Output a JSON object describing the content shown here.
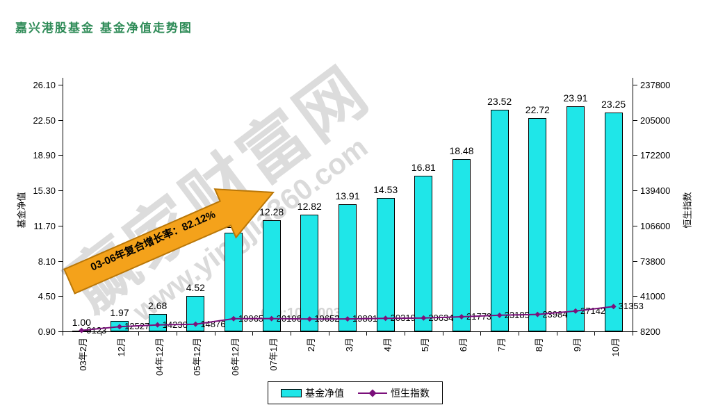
{
  "title": "嘉兴港股基金  基金净值走势图",
  "watermark": {
    "brand": "赢家财富网",
    "url": "www.yingjia360.com",
    "qq": "QQ:100300360"
  },
  "annotation": {
    "arrow_text": "03-06年复合增长率：82.12%"
  },
  "legend": {
    "items": [
      {
        "label": "基金净值",
        "type": "bar"
      },
      {
        "label": "恒生指数",
        "type": "line"
      }
    ]
  },
  "colors": {
    "title": "#2e8b57",
    "bar_fill": "#1fe6e8",
    "line": "#7b107b",
    "arrow_fill": "#f4a21b",
    "arrow_border": "#b97708",
    "axis": "#000000"
  },
  "chart_data": {
    "type": "bar+line",
    "title": "嘉兴港股基金 基金净值走势图",
    "categories": [
      "03年2月",
      "12月",
      "04年12月",
      "05年12月",
      "06年12月",
      "07年1月",
      "2月",
      "3月",
      "4月",
      "5月",
      "6月",
      "7月",
      "8月",
      "9月",
      "10月"
    ],
    "series": [
      {
        "name": "基金净值",
        "type": "bar",
        "axis": "left",
        "values": [
          1.0,
          1.97,
          2.68,
          4.52,
          11.0,
          12.28,
          12.82,
          13.91,
          14.53,
          16.81,
          18.48,
          23.52,
          22.72,
          23.91,
          23.25
        ],
        "labels": [
          "1.00",
          "1.97",
          "2.68",
          "4.52",
          "11.00",
          "12.28",
          "12.82",
          "13.91",
          "14.53",
          "16.81",
          "18.48",
          "23.52",
          "22.72",
          "23.91",
          "23.25"
        ]
      },
      {
        "name": "恒生指数",
        "type": "line",
        "axis": "right",
        "values": [
          9123,
          12527,
          14230,
          14876,
          19965,
          20106,
          19652,
          19801,
          20319,
          20634,
          21773,
          23185,
          23984,
          27142,
          31353
        ],
        "labels": [
          "9123",
          "12527",
          "14230",
          "14876",
          "19965",
          "20106",
          "19652",
          "19801",
          "20319",
          "20634",
          "21773",
          "23185",
          "23984",
          "27142",
          "31353"
        ]
      }
    ],
    "left_axis": {
      "label": "基金净值",
      "min": 0.9,
      "max": 26.1,
      "tick_labels": [
        "26.10",
        "22.50",
        "18.90",
        "15.30",
        "11.70",
        "8.10",
        "4.50",
        "0.90"
      ]
    },
    "right_axis": {
      "label": "恒生指数",
      "min": 8200,
      "max": 237800,
      "tick_labels": [
        "237800",
        "205000",
        "172200",
        "139400",
        "106600",
        "73800",
        "41000",
        "8200"
      ]
    },
    "grid": false,
    "legend_position": "bottom"
  }
}
